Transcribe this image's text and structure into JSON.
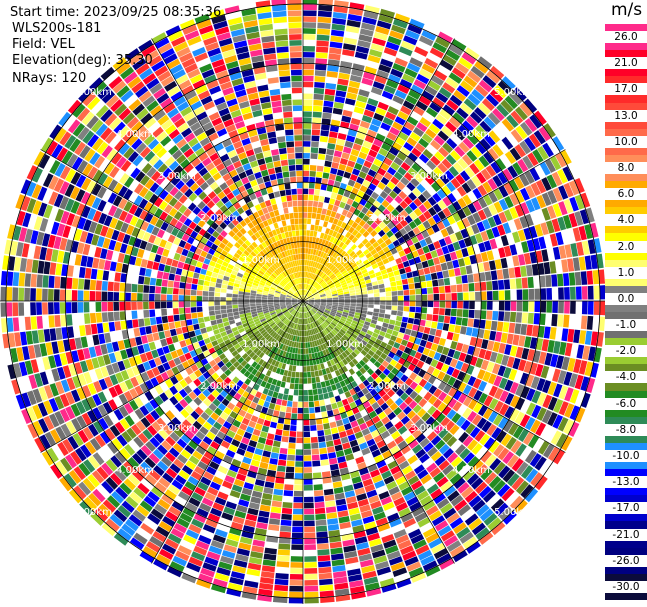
{
  "header": {
    "start_time": "Start time: 2023/09/25 08:35:36",
    "site": "WLS200s-181",
    "field": "Field: VEL",
    "elevation": "Elevation(deg): 35.30",
    "nrays": "NRays: 120"
  },
  "colorbar": {
    "units": "m/s",
    "labels": [
      "26.0",
      "21.0",
      "17.0",
      "13.0",
      "10.0",
      "8.0",
      "6.0",
      "4.0",
      "2.0",
      "1.0",
      "0.0",
      "-1.0",
      "-2.0",
      "-4.0",
      "-6.0",
      "-8.0",
      "-10.0",
      "-13.0",
      "-17.0",
      "-21.0",
      "-26.0",
      "-30.0"
    ],
    "colors": [
      "#ff2a8a",
      "#ff0028",
      "#ff2a2a",
      "#ff4a3a",
      "#ff6a4a",
      "#ff8e5a",
      "#ffaa00",
      "#ffcc00",
      "#ffff00",
      "#ffff70",
      "#808080",
      "#707070",
      "#9acd32",
      "#6b8e23",
      "#228b22",
      "#2e8b57",
      "#1e90ff",
      "#0000ff",
      "#0000cd",
      "#00008b",
      "#000080",
      "#0b0b3b"
    ]
  },
  "ppi": {
    "range_rings": [
      {
        "label": "1.00km",
        "value": 1
      },
      {
        "label": "2.00km",
        "value": 2
      },
      {
        "label": "3.00km",
        "value": 3
      },
      {
        "label": "4.00km",
        "value": 4
      },
      {
        "label": "5.00km",
        "value": 5
      }
    ],
    "max_range_km": 5.1,
    "nrays": 120
  }
}
